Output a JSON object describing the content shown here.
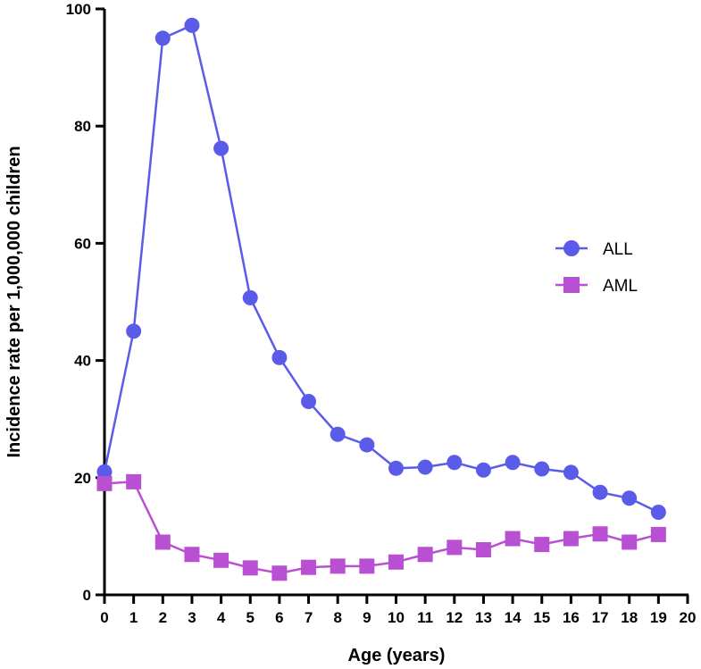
{
  "chart_data": {
    "type": "line",
    "title": "",
    "xlabel": "Age (years)",
    "ylabel": "Incidence rate per 1,000,000 children",
    "xlim": [
      0,
      20
    ],
    "ylim": [
      0,
      100
    ],
    "x_ticks": [
      "0",
      "1",
      "2",
      "3",
      "4",
      "5",
      "6",
      "7",
      "8",
      "9",
      "10",
      "11",
      "12",
      "13",
      "14",
      "15",
      "16",
      "17",
      "18",
      "19",
      "20"
    ],
    "y_ticks": [
      "0",
      "20",
      "40",
      "60",
      "80",
      "100"
    ],
    "legend_position": "right",
    "grid": false,
    "x": [
      0,
      1,
      2,
      3,
      4,
      5,
      6,
      7,
      8,
      9,
      10,
      11,
      12,
      13,
      14,
      15,
      16,
      17,
      18,
      19
    ],
    "series": [
      {
        "name": "ALL",
        "marker": "circle",
        "color": "#5B5BEA",
        "values": [
          21,
          45,
          95,
          97.2,
          76.2,
          50.7,
          40.5,
          33,
          27.4,
          25.6,
          21.6,
          21.8,
          22.6,
          21.3,
          22.6,
          21.5,
          20.9,
          17.5,
          16.5,
          14.1
        ]
      },
      {
        "name": "AML",
        "marker": "square",
        "color": "#B94FD2",
        "values": [
          19,
          19.3,
          9,
          6.9,
          5.9,
          4.6,
          3.7,
          4.7,
          4.9,
          4.9,
          5.6,
          6.9,
          8.1,
          7.7,
          9.6,
          8.6,
          9.6,
          10.4,
          9.0,
          10.3
        ]
      }
    ]
  }
}
